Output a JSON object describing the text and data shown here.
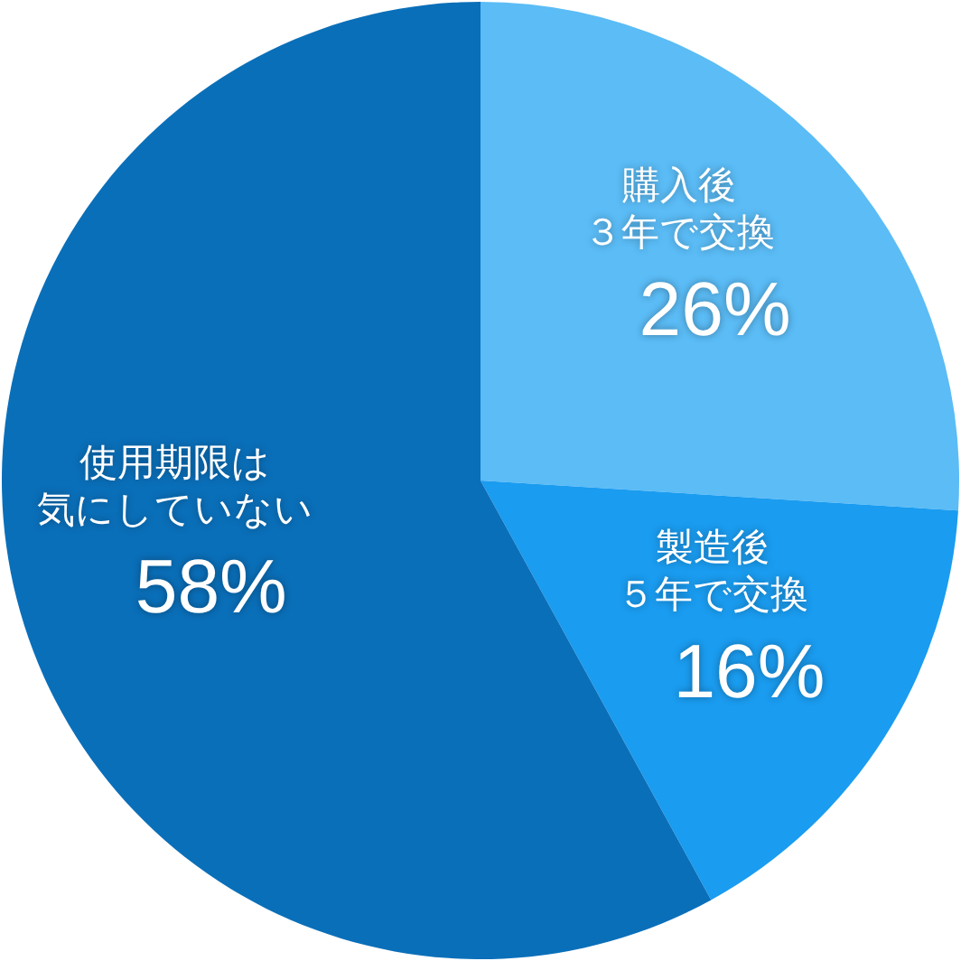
{
  "chart_data": {
    "type": "pie",
    "categories": [
      "購入後３年で交換",
      "製造後５年で交換",
      "使用期限は気にしていない"
    ],
    "values": [
      26,
      16,
      58
    ],
    "colors": [
      "#5bbcf6",
      "#1a9cf0",
      "#0a6fb9"
    ],
    "value_labels": [
      "26%",
      "16%",
      "58%"
    ]
  }
}
